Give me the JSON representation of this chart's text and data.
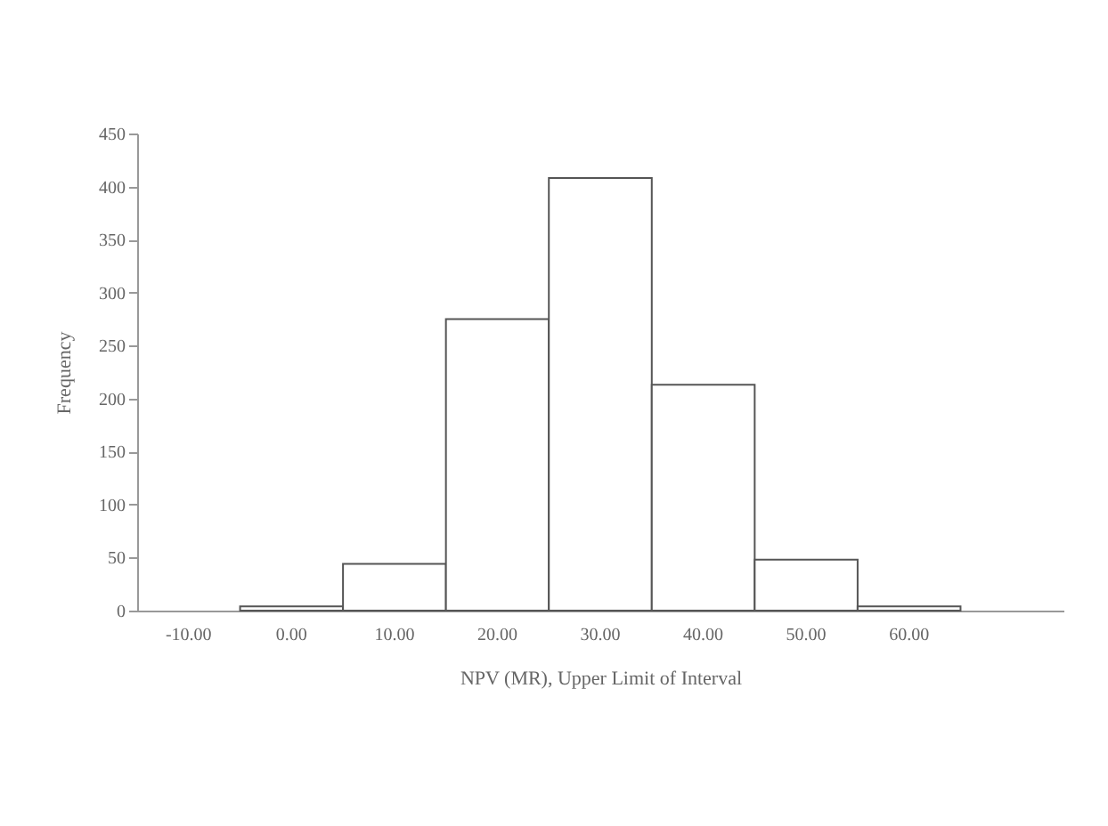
{
  "chart_data": {
    "type": "bar",
    "xlabel": "NPV (MR), Upper Limit of Interval",
    "ylabel": "Frequency",
    "categories": [
      "-10.00",
      "0.00",
      "10.00",
      "20.00",
      "30.00",
      "40.00",
      "50.00",
      "60.00",
      null
    ],
    "values": [
      null,
      4,
      44,
      275,
      408,
      213,
      48,
      4,
      null
    ],
    "color": "#ffffff",
    "ylim": [
      0,
      450
    ],
    "yticks": [
      0,
      50,
      100,
      150,
      200,
      250,
      300,
      350,
      400,
      450
    ],
    "grid": false
  }
}
